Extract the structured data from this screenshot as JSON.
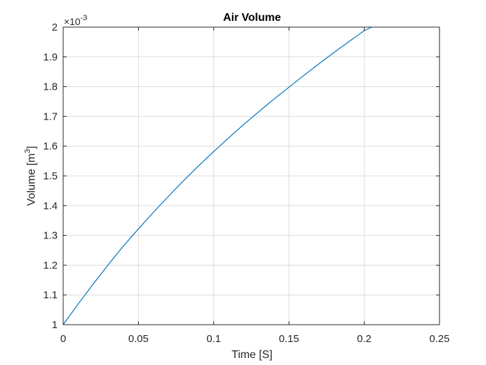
{
  "chart_data": {
    "type": "line",
    "title": "Air Volume",
    "xlabel": "Time [S]",
    "ylabel_main": "Volume [m",
    "ylabel_sup": "3",
    "ylabel_close": "]",
    "y_exponent_prefix": "×10",
    "y_exponent_power": "-3",
    "xlim": [
      0,
      0.25
    ],
    "ylim": [
      1,
      2
    ],
    "x_ticks": [
      "0",
      "0.05",
      "0.1",
      "0.15",
      "0.2",
      "0.25"
    ],
    "y_ticks": [
      "1",
      "1.1",
      "1.2",
      "1.3",
      "1.4",
      "1.5",
      "1.6",
      "1.7",
      "1.8",
      "1.9",
      "2"
    ],
    "grid": true,
    "series": [
      {
        "color": "#0072BD",
        "x": [
          0,
          0.01,
          0.02,
          0.03,
          0.04,
          0.05,
          0.06,
          0.07,
          0.08,
          0.09,
          0.1,
          0.11,
          0.12,
          0.13,
          0.14,
          0.15,
          0.16,
          0.17,
          0.18,
          0.19,
          0.2,
          0.205
        ],
        "y": [
          1.0,
          1.07,
          1.137,
          1.202,
          1.264,
          1.322,
          1.378,
          1.432,
          1.484,
          1.534,
          1.582,
          1.628,
          1.673,
          1.716,
          1.758,
          1.798,
          1.838,
          1.877,
          1.915,
          1.952,
          1.988,
          2.0
        ]
      }
    ]
  }
}
